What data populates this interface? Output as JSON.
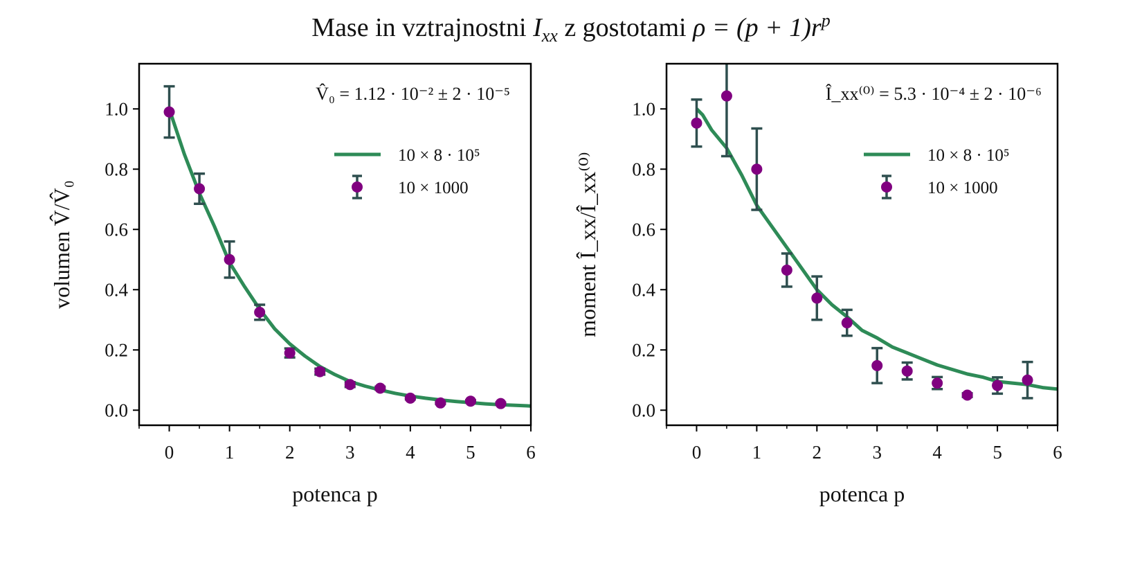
{
  "title": {
    "prefix": "Mase in vztrajnostni ",
    "I": "I",
    "xx": "xx",
    "middle": " z gostotami ",
    "formula": "ρ = (p + 1)r",
    "exp": "p"
  },
  "colors": {
    "curve": "#2e8b57",
    "marker": "#800080",
    "errorbar": "#2f4f4f",
    "axes": "#000000"
  },
  "chart_data": [
    {
      "type": "line",
      "title": "",
      "xlabel": "potenca p",
      "ylabel": "volumen V̂/V̂₀",
      "annotation": "V̂₀ = 1.12 · 10⁻² ± 2 · 10⁻⁵",
      "xlim": [
        -0.5,
        6
      ],
      "ylim": [
        -0.05,
        1.15
      ],
      "xticks": [
        "0",
        "1",
        "2",
        "3",
        "4",
        "5",
        "6"
      ],
      "yticks": [
        "0.0",
        "0.2",
        "0.4",
        "0.6",
        "0.8",
        "1.0"
      ],
      "legend_position": "upper-right",
      "legend": [
        "10 × 8 · 10⁵",
        "10 × 1000"
      ],
      "series": [
        {
          "name": "10 × 8 · 10⁵",
          "kind": "line",
          "x": [
            0,
            0.25,
            0.5,
            0.75,
            1,
            1.25,
            1.5,
            1.75,
            2,
            2.25,
            2.5,
            2.75,
            3,
            3.25,
            3.5,
            3.75,
            4,
            4.25,
            4.5,
            4.75,
            5,
            5.25,
            5.5,
            5.75,
            6
          ],
          "y": [
            1.0,
            0.85,
            0.72,
            0.61,
            0.49,
            0.41,
            0.335,
            0.27,
            0.22,
            0.18,
            0.145,
            0.118,
            0.095,
            0.08,
            0.067,
            0.056,
            0.047,
            0.04,
            0.034,
            0.029,
            0.025,
            0.021,
            0.018,
            0.016,
            0.014
          ]
        },
        {
          "name": "10 × 1000",
          "kind": "errorbar",
          "x": [
            0,
            0.5,
            1,
            1.5,
            2,
            2.5,
            3,
            3.5,
            4,
            4.5,
            5,
            5.5
          ],
          "y": [
            0.99,
            0.735,
            0.5,
            0.325,
            0.19,
            0.128,
            0.085,
            0.073,
            0.04,
            0.024,
            0.03,
            0.022
          ],
          "yerr": [
            0.085,
            0.05,
            0.06,
            0.025,
            0.015,
            0.01,
            0.008,
            0.005,
            0.004,
            0.003,
            0.003,
            0.003
          ]
        }
      ]
    },
    {
      "type": "line",
      "title": "",
      "xlabel": "potenca p",
      "ylabel": "moment Î_xx/Î_xx⁽⁰⁾",
      "annotation": "Î_xx⁽⁰⁾ = 5.3 · 10⁻⁴ ± 2 · 10⁻⁶",
      "xlim": [
        -0.5,
        6
      ],
      "ylim": [
        -0.05,
        1.15
      ],
      "xticks": [
        "0",
        "1",
        "2",
        "3",
        "4",
        "5",
        "6"
      ],
      "yticks": [
        "0.0",
        "0.2",
        "0.4",
        "0.6",
        "0.8",
        "1.0"
      ],
      "legend_position": "upper-right",
      "legend": [
        "10 × 8 · 10⁵",
        "10 × 1000"
      ],
      "series": [
        {
          "name": "10 × 8 · 10⁵",
          "kind": "line",
          "x": [
            0,
            0.1,
            0.25,
            0.5,
            0.75,
            1,
            1.25,
            1.5,
            1.75,
            2,
            2.25,
            2.5,
            2.75,
            3,
            3.25,
            3.5,
            3.75,
            4,
            4.25,
            4.5,
            4.75,
            5,
            5.25,
            5.5,
            5.75,
            6
          ],
          "y": [
            1.0,
            0.98,
            0.93,
            0.87,
            0.78,
            0.68,
            0.61,
            0.54,
            0.47,
            0.4,
            0.35,
            0.31,
            0.265,
            0.24,
            0.21,
            0.19,
            0.17,
            0.15,
            0.135,
            0.12,
            0.11,
            0.095,
            0.09,
            0.085,
            0.075,
            0.07
          ]
        },
        {
          "name": "10 × 1000",
          "kind": "errorbar",
          "x": [
            0,
            0.5,
            1,
            1.5,
            2,
            2.5,
            3,
            3.5,
            4,
            4.5,
            5,
            5.5
          ],
          "y": [
            0.953,
            1.043,
            0.8,
            0.465,
            0.372,
            0.29,
            0.148,
            0.13,
            0.09,
            0.05,
            0.082,
            0.1
          ],
          "yerr": [
            0.078,
            0.2,
            0.135,
            0.055,
            0.072,
            0.043,
            0.058,
            0.028,
            0.02,
            0.006,
            0.027,
            0.06
          ]
        }
      ]
    }
  ]
}
